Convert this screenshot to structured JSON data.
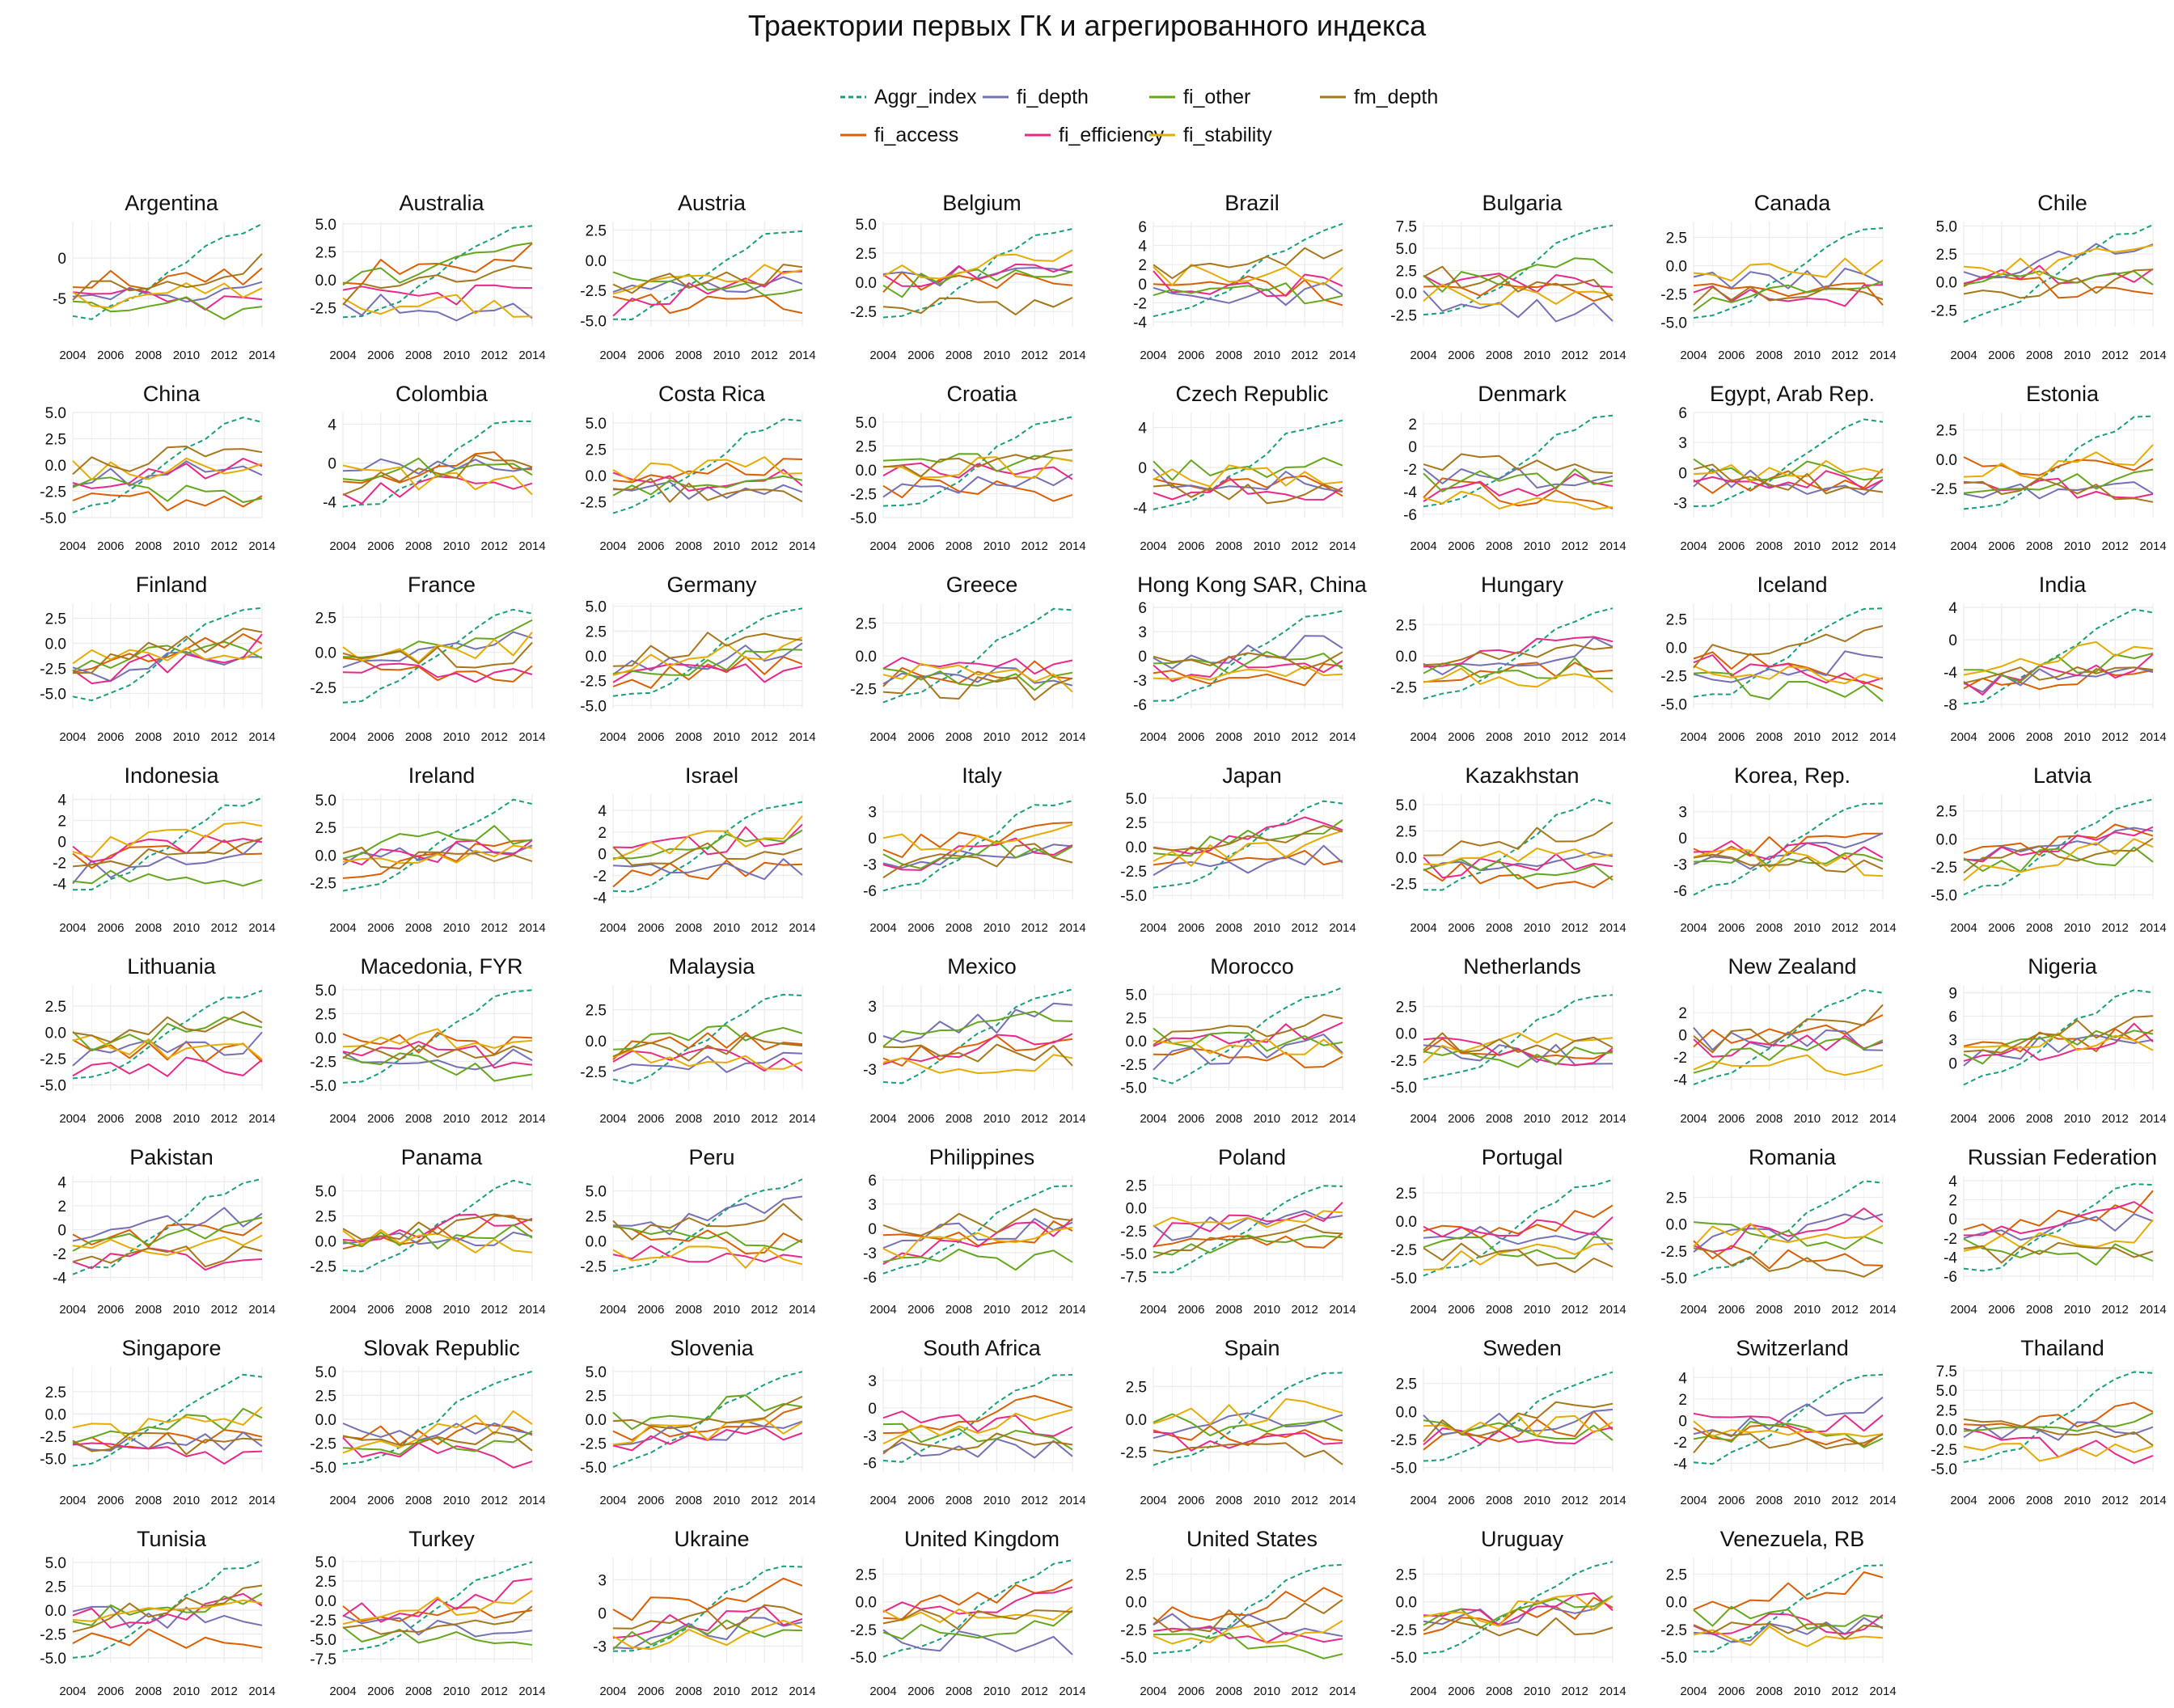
{
  "title": "Траектории первых ГК и агрегированного индекса",
  "legend": [
    {
      "key": "Aggr_index",
      "label": "Aggr_index",
      "color": "#1b9e77",
      "dashed": true
    },
    {
      "key": "fi_access",
      "label": "fi_access",
      "color": "#d95f02"
    },
    {
      "key": "fi_depth",
      "label": "fi_depth",
      "color": "#7570b3"
    },
    {
      "key": "fi_efficiency",
      "label": "fi_efficiency",
      "color": "#e7298a"
    },
    {
      "key": "fi_other",
      "label": "fi_other",
      "color": "#66a61e"
    },
    {
      "key": "fi_stability",
      "label": "fi_stability",
      "color": "#e6ab02"
    },
    {
      "key": "fm_depth",
      "label": "fm_depth",
      "color": "#a6761d"
    }
  ],
  "chart_data": {
    "type": "line",
    "x": [
      2004,
      2005,
      2006,
      2007,
      2008,
      2009,
      2010,
      2011,
      2012,
      2013,
      2014
    ],
    "x_ticks": [
      "2004",
      "2006",
      "2008",
      "2010",
      "2012",
      "2014"
    ],
    "grid": true,
    "legend_position": "top",
    "series_order": [
      "Aggr_index",
      "fi_access",
      "fi_depth",
      "fi_efficiency",
      "fi_other",
      "fi_stability",
      "fm_depth"
    ],
    "panels": [
      {
        "name": "Argentina",
        "ylim": [
          -8.5,
          4.5
        ],
        "yticks": [
          "0",
          "-5"
        ],
        "yvals": [
          0,
          -5
        ]
      },
      {
        "name": "Australia",
        "ylim": [
          -4.2,
          5.2
        ],
        "yticks": [
          "5.0",
          "2.5",
          "0.0",
          "-2.5"
        ],
        "yvals": [
          5,
          2.5,
          0,
          -2.5
        ]
      },
      {
        "name": "Austria",
        "ylim": [
          -5.5,
          3.2
        ],
        "yticks": [
          "2.5",
          "0.0",
          "-2.5",
          "-5.0"
        ],
        "yvals": [
          2.5,
          0,
          -2.5,
          -5
        ]
      },
      {
        "name": "Belgium",
        "ylim": [
          -3.8,
          5.2
        ],
        "yticks": [
          "5.0",
          "2.5",
          "0.0",
          "-2.5"
        ],
        "yvals": [
          5,
          2.5,
          0,
          -2.5
        ]
      },
      {
        "name": "Brazil",
        "ylim": [
          -4.5,
          6.5
        ],
        "yticks": [
          "6",
          "4",
          "2",
          "0",
          "-2",
          "-4"
        ],
        "yvals": [
          6,
          4,
          2,
          0,
          -2,
          -4
        ]
      },
      {
        "name": "Bulgaria",
        "ylim": [
          -3.8,
          8.0
        ],
        "yticks": [
          "7.5",
          "5.0",
          "2.5",
          "0.0",
          "-2.5"
        ],
        "yvals": [
          7.5,
          5,
          2.5,
          0,
          -2.5
        ]
      },
      {
        "name": "Canada",
        "ylim": [
          -5.4,
          3.9
        ],
        "yticks": [
          "2.5",
          "0.0",
          "-2.5",
          "-5.0"
        ],
        "yvals": [
          2.5,
          0,
          -2.5,
          -5
        ]
      },
      {
        "name": "Chile",
        "ylim": [
          -4.0,
          5.4
        ],
        "yticks": [
          "5.0",
          "2.5",
          "0.0",
          "-2.5"
        ],
        "yvals": [
          5,
          2.5,
          0,
          -2.5
        ]
      },
      {
        "name": "China",
        "ylim": [
          -5.0,
          5.0
        ],
        "yticks": [
          "5.0",
          "2.5",
          "0.0",
          "-2.5",
          "-5.0"
        ],
        "yvals": [
          5,
          2.5,
          0,
          -2.5,
          -5
        ]
      },
      {
        "name": "Colombia",
        "ylim": [
          -5.6,
          5.2
        ],
        "yticks": [
          "4",
          "0",
          "-4"
        ],
        "yvals": [
          4,
          0,
          -4
        ]
      },
      {
        "name": "Costa Rica",
        "ylim": [
          -4.0,
          6.0
        ],
        "yticks": [
          "5.0",
          "2.5",
          "0.0",
          "-2.5"
        ],
        "yvals": [
          5,
          2.5,
          0,
          -2.5
        ]
      },
      {
        "name": "Croatia",
        "ylim": [
          -5.0,
          6.0
        ],
        "yticks": [
          "5.0",
          "2.5",
          "0.0",
          "-2.5",
          "-5.0"
        ],
        "yvals": [
          5,
          2.5,
          0,
          -2.5,
          -5
        ]
      },
      {
        "name": "Czech Republic",
        "ylim": [
          -5.0,
          5.5
        ],
        "yticks": [
          "4",
          "0",
          "-4"
        ],
        "yvals": [
          4,
          0,
          -4
        ]
      },
      {
        "name": "Denmark",
        "ylim": [
          -6.3,
          3.0
        ],
        "yticks": [
          "2",
          "0",
          "-2",
          "-4",
          "-6"
        ],
        "yvals": [
          2,
          0,
          -2,
          -4,
          -6
        ]
      },
      {
        "name": "Egypt, Arab Rep.",
        "ylim": [
          -4.5,
          6.0
        ],
        "yticks": [
          "6",
          "3",
          "0",
          "-3"
        ],
        "yvals": [
          6,
          3,
          0,
          -3
        ]
      },
      {
        "name": "Estonia",
        "ylim": [
          -5.0,
          4.0
        ],
        "yticks": [
          "2.5",
          "0.0",
          "-2.5"
        ],
        "yvals": [
          2.5,
          0,
          -2.5
        ]
      },
      {
        "name": "Finland",
        "ylim": [
          -6.5,
          4.0
        ],
        "yticks": [
          "2.5",
          "0.0",
          "-2.5",
          "-5.0"
        ],
        "yvals": [
          2.5,
          0,
          -2.5,
          -5
        ]
      },
      {
        "name": "France",
        "ylim": [
          -4.0,
          3.5
        ],
        "yticks": [
          "2.5",
          "0.0",
          "-2.5"
        ],
        "yvals": [
          2.5,
          0,
          -2.5
        ]
      },
      {
        "name": "Germany",
        "ylim": [
          -5.3,
          5.3
        ],
        "yticks": [
          "5.0",
          "2.5",
          "0.0",
          "-2.5",
          "-5.0"
        ],
        "yvals": [
          5,
          2.5,
          0,
          -2.5,
          -5
        ]
      },
      {
        "name": "Greece",
        "ylim": [
          -4.0,
          4.0
        ],
        "yticks": [
          "2.5",
          "0.0",
          "-2.5"
        ],
        "yvals": [
          2.5,
          0,
          -2.5
        ]
      },
      {
        "name": "Hong Kong SAR, China",
        "ylim": [
          -6.5,
          6.5
        ],
        "yticks": [
          "6",
          "3",
          "0",
          "-3",
          "-6"
        ],
        "yvals": [
          6,
          3,
          0,
          -3,
          -6
        ]
      },
      {
        "name": "Hungary",
        "ylim": [
          -4.2,
          4.2
        ],
        "yticks": [
          "2.5",
          "0.0",
          "-2.5"
        ],
        "yvals": [
          2.5,
          0,
          -2.5
        ]
      },
      {
        "name": "Iceland",
        "ylim": [
          -5.4,
          3.9
        ],
        "yticks": [
          "2.5",
          "0.0",
          "-2.5",
          "-5.0"
        ],
        "yvals": [
          2.5,
          0,
          -2.5,
          -5
        ]
      },
      {
        "name": "India",
        "ylim": [
          -8.5,
          4.5
        ],
        "yticks": [
          "4",
          "0",
          "-4",
          "-8"
        ],
        "yvals": [
          4,
          0,
          -4,
          -8
        ]
      },
      {
        "name": "Indonesia",
        "ylim": [
          -5.5,
          4.5
        ],
        "yticks": [
          "4",
          "2",
          "0",
          "-2",
          "-4"
        ],
        "yvals": [
          4,
          2,
          0,
          -2,
          -4
        ]
      },
      {
        "name": "Ireland",
        "ylim": [
          -4.0,
          5.5
        ],
        "yticks": [
          "5.0",
          "2.5",
          "0.0",
          "-2.5"
        ],
        "yvals": [
          5,
          2.5,
          0,
          -2.5
        ]
      },
      {
        "name": "Israel",
        "ylim": [
          -4.2,
          5.5
        ],
        "yticks": [
          "4",
          "2",
          "0",
          "-2",
          "-4"
        ],
        "yvals": [
          4,
          2,
          0,
          -2,
          -4
        ]
      },
      {
        "name": "Italy",
        "ylim": [
          -7.0,
          5.0
        ],
        "yticks": [
          "3",
          "0",
          "-3",
          "-6"
        ],
        "yvals": [
          3,
          0,
          -3,
          -6
        ]
      },
      {
        "name": "Japan",
        "ylim": [
          -5.4,
          5.4
        ],
        "yticks": [
          "5.0",
          "2.5",
          "0.0",
          "-2.5",
          "-5.0"
        ],
        "yvals": [
          5,
          2.5,
          0,
          -2.5,
          -5
        ]
      },
      {
        "name": "Kazakhstan",
        "ylim": [
          -4.0,
          6.0
        ],
        "yticks": [
          "5.0",
          "2.5",
          "0.0",
          "-2.5"
        ],
        "yvals": [
          5,
          2.5,
          0,
          -2.5
        ]
      },
      {
        "name": "Korea, Rep.",
        "ylim": [
          -7.0,
          5.0
        ],
        "yticks": [
          "3",
          "0",
          "-3",
          "-6"
        ],
        "yvals": [
          3,
          0,
          -3,
          -6
        ]
      },
      {
        "name": "Latvia",
        "ylim": [
          -5.4,
          4.0
        ],
        "yticks": [
          "2.5",
          "0.0",
          "-2.5",
          "-5.0"
        ],
        "yvals": [
          2.5,
          0,
          -2.5,
          -5
        ]
      },
      {
        "name": "Lithuania",
        "ylim": [
          -5.5,
          4.5
        ],
        "yticks": [
          "2.5",
          "0.0",
          "-2.5",
          "-5.0"
        ],
        "yvals": [
          2.5,
          0,
          -2.5,
          -5
        ]
      },
      {
        "name": "Macedonia, FYR",
        "ylim": [
          -5.5,
          5.5
        ],
        "yticks": [
          "5.0",
          "2.5",
          "0.0",
          "-2.5",
          "-5.0"
        ],
        "yvals": [
          5,
          2.5,
          0,
          -2.5,
          -5
        ]
      },
      {
        "name": "Malaysia",
        "ylim": [
          -4.0,
          4.5
        ],
        "yticks": [
          "2.5",
          "0.0",
          "-2.5"
        ],
        "yvals": [
          2.5,
          0,
          -2.5
        ]
      },
      {
        "name": "Mexico",
        "ylim": [
          -5.0,
          5.0
        ],
        "yticks": [
          "3",
          "0",
          "-3"
        ],
        "yvals": [
          3,
          0,
          -3
        ]
      },
      {
        "name": "Morocco",
        "ylim": [
          -5.3,
          6.0
        ],
        "yticks": [
          "5.0",
          "2.5",
          "0.0",
          "-2.5",
          "-5.0"
        ],
        "yvals": [
          5,
          2.5,
          0,
          -2.5,
          -5
        ]
      },
      {
        "name": "Netherlands",
        "ylim": [
          -5.3,
          4.5
        ],
        "yticks": [
          "2.5",
          "0.0",
          "-2.5",
          "-5.0"
        ],
        "yvals": [
          2.5,
          0,
          -2.5,
          -5
        ]
      },
      {
        "name": "New Zealand",
        "ylim": [
          -5.0,
          4.5
        ],
        "yticks": [
          "2",
          "0",
          "-2",
          "-4"
        ],
        "yvals": [
          2,
          0,
          -2,
          -4
        ]
      },
      {
        "name": "Nigeria",
        "ylim": [
          -3.5,
          10.0
        ],
        "yticks": [
          "9",
          "6",
          "3",
          "0"
        ],
        "yvals": [
          9,
          6,
          3,
          0
        ]
      },
      {
        "name": "Pakistan",
        "ylim": [
          -4.3,
          4.5
        ],
        "yticks": [
          "4",
          "2",
          "0",
          "-2",
          "-4"
        ],
        "yvals": [
          4,
          2,
          0,
          -2,
          -4
        ]
      },
      {
        "name": "Panama",
        "ylim": [
          -4.0,
          6.5
        ],
        "yticks": [
          "5.0",
          "2.5",
          "0.0",
          "-2.5"
        ],
        "yvals": [
          5,
          2.5,
          0,
          -2.5
        ]
      },
      {
        "name": "Peru",
        "ylim": [
          -4.0,
          6.5
        ],
        "yticks": [
          "5.0",
          "2.5",
          "0.0",
          "-2.5"
        ],
        "yvals": [
          5,
          2.5,
          0,
          -2.5
        ]
      },
      {
        "name": "Philippines",
        "ylim": [
          -6.5,
          6.5
        ],
        "yticks": [
          "6",
          "3",
          "0",
          "-3",
          "-6"
        ],
        "yvals": [
          6,
          3,
          0,
          -3,
          -6
        ]
      },
      {
        "name": "Poland",
        "ylim": [
          -8.0,
          3.5
        ],
        "yticks": [
          "2.5",
          "0.0",
          "-2.5",
          "-5.0",
          "-7.5"
        ],
        "yvals": [
          2.5,
          0,
          -2.5,
          -5,
          -7.5
        ]
      },
      {
        "name": "Portugal",
        "ylim": [
          -5.3,
          4.0
        ],
        "yticks": [
          "2.5",
          "0.0",
          "-2.5",
          "-5.0"
        ],
        "yvals": [
          2.5,
          0,
          -2.5,
          -5
        ]
      },
      {
        "name": "Romania",
        "ylim": [
          -5.3,
          4.5
        ],
        "yticks": [
          "2.5",
          "0.0",
          "-2.5",
          "-5.0"
        ],
        "yvals": [
          2.5,
          0,
          -2.5,
          -5
        ]
      },
      {
        "name": "Russian Federation",
        "ylim": [
          -6.5,
          4.5
        ],
        "yticks": [
          "4",
          "2",
          "0",
          "-2",
          "-4",
          "-6"
        ],
        "yvals": [
          4,
          2,
          0,
          -2,
          -4,
          -6
        ]
      },
      {
        "name": "Singapore",
        "ylim": [
          -6.5,
          5.3
        ],
        "yticks": [
          "2.5",
          "0.0",
          "-2.5",
          "-5.0"
        ],
        "yvals": [
          2.5,
          0,
          -2.5,
          -5
        ]
      },
      {
        "name": "Slovak Republic",
        "ylim": [
          -5.5,
          5.5
        ],
        "yticks": [
          "5.0",
          "2.5",
          "0.0",
          "-2.5",
          "-5.0"
        ],
        "yvals": [
          5,
          2.5,
          0,
          -2.5,
          -5
        ]
      },
      {
        "name": "Slovenia",
        "ylim": [
          -5.5,
          5.5
        ],
        "yticks": [
          "5.0",
          "2.5",
          "0.0",
          "-2.5",
          "-5.0"
        ],
        "yvals": [
          5,
          2.5,
          0,
          -2.5,
          -5
        ]
      },
      {
        "name": "South Africa",
        "ylim": [
          -7.0,
          4.5
        ],
        "yticks": [
          "3",
          "0",
          "-3",
          "-6"
        ],
        "yvals": [
          3,
          0,
          -3,
          -6
        ]
      },
      {
        "name": "Spain",
        "ylim": [
          -4.0,
          4.0
        ],
        "yticks": [
          "2.5",
          "0.0",
          "-2.5"
        ],
        "yvals": [
          2.5,
          0,
          -2.5
        ]
      },
      {
        "name": "Sweden",
        "ylim": [
          -5.4,
          4.0
        ],
        "yticks": [
          "2.5",
          "0.0",
          "-2.5",
          "-5.0"
        ],
        "yvals": [
          2.5,
          0,
          -2.5,
          -5
        ]
      },
      {
        "name": "Switzerland",
        "ylim": [
          -4.8,
          5.0
        ],
        "yticks": [
          "4",
          "2",
          "0",
          "-2",
          "-4"
        ],
        "yvals": [
          4,
          2,
          0,
          -2,
          -4
        ]
      },
      {
        "name": "Thailand",
        "ylim": [
          -5.4,
          8.0
        ],
        "yticks": [
          "7.5",
          "5.0",
          "2.5",
          "0.0",
          "-2.5",
          "-5.0"
        ],
        "yvals": [
          7.5,
          5,
          2.5,
          0,
          -2.5,
          -5
        ]
      },
      {
        "name": "Tunisia",
        "ylim": [
          -5.5,
          5.5
        ],
        "yticks": [
          "5.0",
          "2.5",
          "0.0",
          "-2.5",
          "-5.0"
        ],
        "yvals": [
          5,
          2.5,
          0,
          -2.5,
          -5
        ]
      },
      {
        "name": "Turkey",
        "ylim": [
          -8.0,
          5.5
        ],
        "yticks": [
          "5.0",
          "2.5",
          "0.0",
          "-2.5",
          "-5.0",
          "-7.5"
        ],
        "yvals": [
          5,
          2.5,
          0,
          -2.5,
          -5,
          -7.5
        ]
      },
      {
        "name": "Ukraine",
        "ylim": [
          -4.5,
          5.0
        ],
        "yticks": [
          "3",
          "0",
          "-3"
        ],
        "yvals": [
          3,
          0,
          -3
        ]
      },
      {
        "name": "United Kingdom",
        "ylim": [
          -5.5,
          4.0
        ],
        "yticks": [
          "2.5",
          "0.0",
          "-2.5",
          "-5.0"
        ],
        "yvals": [
          2.5,
          0,
          -2.5,
          -5
        ]
      },
      {
        "name": "United States",
        "ylim": [
          -5.5,
          4.0
        ],
        "yticks": [
          "2.5",
          "0.0",
          "-2.5",
          "-5.0"
        ],
        "yvals": [
          2.5,
          0,
          -2.5,
          -5
        ]
      },
      {
        "name": "Uruguay",
        "ylim": [
          -5.5,
          4.0
        ],
        "yticks": [
          "2.5",
          "0.0",
          "-2.5",
          "-5.0"
        ],
        "yvals": [
          2.5,
          0,
          -2.5,
          -5
        ]
      },
      {
        "name": "Venezuela, RB",
        "ylim": [
          -5.5,
          4.0
        ],
        "yticks": [
          "2.5",
          "0.0",
          "-2.5",
          "-5.0"
        ],
        "yvals": [
          2.5,
          0,
          -2.5,
          -5
        ]
      }
    ]
  }
}
